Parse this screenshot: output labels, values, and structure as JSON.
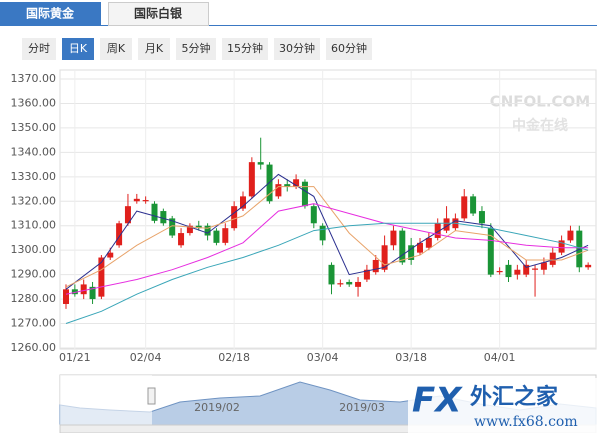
{
  "tabs": [
    "国际黄金",
    "国际白银"
  ],
  "periods": [
    "分时",
    "日K",
    "周K",
    "月K",
    "5分钟",
    "15分钟",
    "30分钟",
    "60分钟"
  ],
  "watermark": [
    "CNFOL.COM",
    "中金在线"
  ],
  "navigator": {
    "labels": [
      "2019/02",
      "2019/03"
    ]
  },
  "logo": {
    "mark": "FX",
    "name": "外汇之家",
    "url": "www.fx68.com"
  },
  "chart_data": {
    "type": "candlestick",
    "up_color": "#e0201c",
    "down_color": "#1a9436",
    "categories": [
      null,
      "01/21",
      null,
      null,
      null,
      null,
      null,
      null,
      null,
      "02/04",
      null,
      null,
      null,
      null,
      null,
      null,
      null,
      null,
      null,
      "02/18",
      null,
      null,
      null,
      null,
      null,
      null,
      null,
      null,
      null,
      "03/04",
      null,
      null,
      null,
      null,
      null,
      null,
      null,
      null,
      null,
      "03/18",
      null,
      null,
      null,
      null,
      null,
      null,
      null,
      null,
      null,
      "04/01",
      null,
      null,
      null,
      null,
      null,
      null,
      null,
      null,
      null,
      null
    ],
    "open": [
      1278,
      1284,
      1282,
      1285,
      1281,
      1297,
      1302,
      1311,
      1320,
      1320,
      1319,
      1316,
      1313,
      1302,
      1307,
      1310,
      1310,
      1308,
      1303,
      1309,
      1317,
      1322,
      1336,
      1335,
      1322,
      1327,
      1326,
      1328,
      1318,
      1310,
      1294,
      1286,
      1287,
      1285,
      1288,
      1291,
      1292,
      1302,
      1308,
      1302,
      1299,
      1301,
      1305,
      1308,
      1309,
      1313,
      1322,
      1316,
      1309,
      1291,
      1294,
      1290,
      1290,
      1292,
      1292,
      1294,
      1299,
      1304,
      1308,
      1293
    ],
    "high": [
      1286,
      1286,
      1288,
      1287,
      1298,
      1301,
      1312,
      1323,
      1323,
      1322,
      1320,
      1317,
      1314,
      1309,
      1311,
      1312,
      1311,
      1309,
      1311,
      1320,
      1324,
      1338,
      1346,
      1336,
      1329,
      1329,
      1331,
      1329,
      1319,
      1311,
      1295,
      1288,
      1288,
      1289,
      1294,
      1298,
      1306,
      1310,
      1309,
      1305,
      1305,
      1307,
      1313,
      1318,
      1315,
      1325,
      1323,
      1318,
      1311,
      1293,
      1296,
      1294,
      1296,
      1294,
      1297,
      1301,
      1306,
      1310,
      1310,
      1295
    ],
    "low": [
      1276,
      1281,
      1280,
      1278,
      1280,
      1296,
      1301,
      1310,
      1319,
      1319,
      1311,
      1310,
      1305,
      1301,
      1306,
      1308,
      1304,
      1302,
      1302,
      1308,
      1316,
      1321,
      1333,
      1319,
      1321,
      1324,
      1325,
      1317,
      1309,
      1302,
      1282,
      1285,
      1285,
      1281,
      1287,
      1290,
      1291,
      1300,
      1294,
      1294,
      1298,
      1300,
      1304,
      1307,
      1308,
      1312,
      1314,
      1309,
      1289,
      1290,
      1287,
      1288,
      1289,
      1281,
      1290,
      1293,
      1298,
      1303,
      1291,
      1292
    ],
    "close": [
      1284,
      1282,
      1286,
      1280,
      1297,
      1299,
      1311,
      1318,
      1321,
      1320.5,
      1312,
      1311,
      1306,
      1307,
      1310,
      1309,
      1306,
      1303,
      1309,
      1318,
      1322,
      1336,
      1335,
      1320,
      1327,
      1326,
      1329,
      1318,
      1311,
      1304,
      1286,
      1286.5,
      1286,
      1287,
      1292,
      1296,
      1302,
      1308,
      1295,
      1296,
      1303,
      1305,
      1311,
      1313,
      1313,
      1322,
      1315,
      1311,
      1290,
      1291.5,
      1289,
      1292,
      1294,
      1292.5,
      1295,
      1299,
      1304,
      1308,
      1293,
      1294
    ],
    "lines": [
      {
        "color": "#2b2f8f",
        "x": [
          0,
          4,
          8,
          12,
          16,
          20,
          24,
          28,
          32,
          36,
          40,
          44,
          48,
          52,
          56,
          59
        ],
        "values": [
          1284,
          1295,
          1316,
          1312,
          1307,
          1318,
          1331,
          1322,
          1290,
          1293,
          1303,
          1312,
          1310,
          1293,
          1297,
          1302
        ]
      },
      {
        "color": "#e8a36a",
        "x": [
          0,
          4,
          8,
          12,
          16,
          20,
          24,
          28,
          32,
          36,
          40,
          44,
          48,
          52,
          56,
          59
        ],
        "values": [
          1285,
          1292,
          1302,
          1310,
          1309,
          1314,
          1326,
          1326,
          1307,
          1294,
          1298,
          1308,
          1306,
          1296,
          1296,
          1300
        ]
      },
      {
        "color": "#e62ee0",
        "x": [
          0,
          4,
          8,
          12,
          16,
          20,
          24,
          28,
          32,
          36,
          40,
          44,
          48,
          52,
          56,
          59
        ],
        "values": [
          1282,
          1285,
          1288,
          1292,
          1297,
          1303,
          1316,
          1319,
          1315,
          1311,
          1308,
          1305,
          1304,
          1302,
          1301,
          1301
        ]
      },
      {
        "color": "#3aa6b8",
        "x": [
          0,
          4,
          8,
          12,
          16,
          20,
          24,
          28,
          32,
          36,
          40,
          44,
          48,
          52,
          56,
          59
        ],
        "values": [
          1270,
          1275,
          1282,
          1288,
          1293,
          1297,
          1302,
          1308,
          1310,
          1311,
          1311,
          1311,
          1309,
          1306,
          1303,
          1300
        ]
      }
    ],
    "ylim": [
      1260,
      1370
    ],
    "yticks": [
      {
        "value": 1260,
        "label": "1260.00"
      },
      {
        "value": 1270,
        "label": "1270.00"
      },
      {
        "value": 1280,
        "label": "1280.00"
      },
      {
        "value": 1290,
        "label": "1290.00"
      },
      {
        "value": 1300,
        "label": "1300.00"
      },
      {
        "value": 1310,
        "label": "1310.00"
      },
      {
        "value": 1320,
        "label": "1320.00"
      },
      {
        "value": 1330,
        "label": "1330.00"
      },
      {
        "value": 1340,
        "label": "1340.00"
      },
      {
        "value": 1350,
        "label": "1350.00"
      },
      {
        "value": 1360,
        "label": "1360.00"
      },
      {
        "value": 1370,
        "label": "1370.00"
      }
    ],
    "grid": true
  }
}
